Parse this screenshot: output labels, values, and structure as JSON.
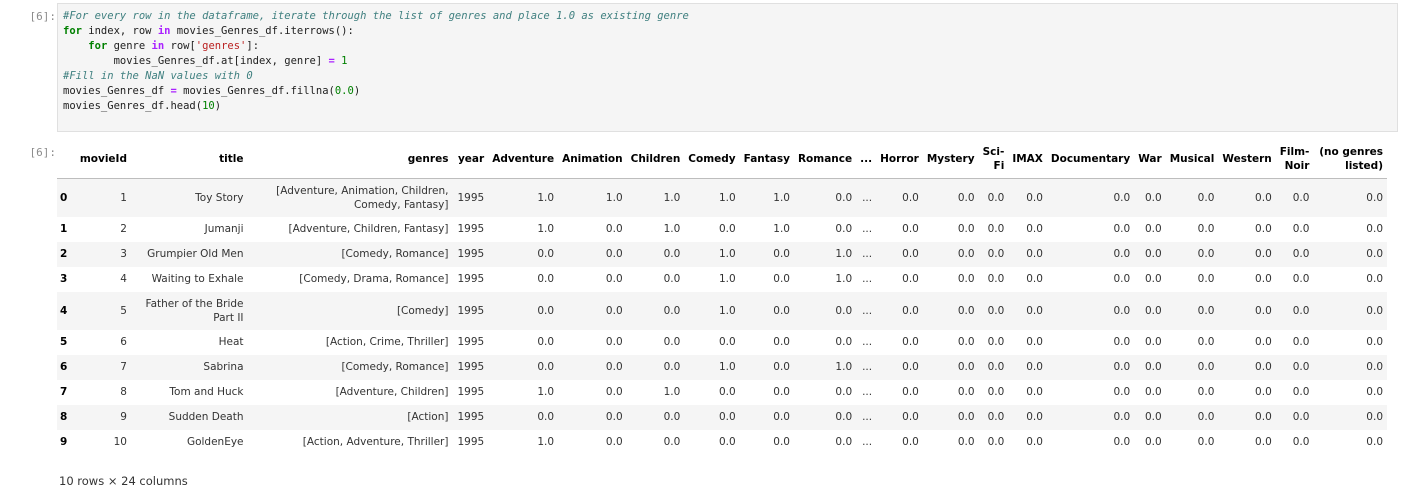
{
  "input_cell": {
    "prompt": "[6]:",
    "lines": [
      "#For every row in the dataframe, iterate through the list of genres and place 1.0 as existing genre",
      "for index, row in movies_Genres_df.iterrows():",
      "    for genre in row['genres']:",
      "        movies_Genres_df.at[index, genre] = 1",
      "",
      "#Fill in the NaN values with 0",
      "movies_Genres_df = movies_Genres_df.fillna(0.0)",
      "movies_Genres_df.head(10)"
    ]
  },
  "output_cell": {
    "prompt": "[6]:",
    "columns": [
      "",
      "movieId",
      "title",
      "genres",
      "year",
      "Adventure",
      "Animation",
      "Children",
      "Comedy",
      "Fantasy",
      "Romance",
      "...",
      "Horror",
      "Mystery",
      "Sci-Fi",
      "IMAX",
      "Documentary",
      "War",
      "Musical",
      "Western",
      "Film-Noir",
      "(no genres listed)"
    ],
    "rows": [
      [
        "0",
        "1",
        "Toy Story",
        "[Adventure, Animation, Children, Comedy, Fantasy]",
        "1995",
        "1.0",
        "1.0",
        "1.0",
        "1.0",
        "1.0",
        "0.0",
        "...",
        "0.0",
        "0.0",
        "0.0",
        "0.0",
        "0.0",
        "0.0",
        "0.0",
        "0.0",
        "0.0",
        "0.0"
      ],
      [
        "1",
        "2",
        "Jumanji",
        "[Adventure, Children, Fantasy]",
        "1995",
        "1.0",
        "0.0",
        "1.0",
        "0.0",
        "1.0",
        "0.0",
        "...",
        "0.0",
        "0.0",
        "0.0",
        "0.0",
        "0.0",
        "0.0",
        "0.0",
        "0.0",
        "0.0",
        "0.0"
      ],
      [
        "2",
        "3",
        "Grumpier Old Men",
        "[Comedy, Romance]",
        "1995",
        "0.0",
        "0.0",
        "0.0",
        "1.0",
        "0.0",
        "1.0",
        "...",
        "0.0",
        "0.0",
        "0.0",
        "0.0",
        "0.0",
        "0.0",
        "0.0",
        "0.0",
        "0.0",
        "0.0"
      ],
      [
        "3",
        "4",
        "Waiting to Exhale",
        "[Comedy, Drama, Romance]",
        "1995",
        "0.0",
        "0.0",
        "0.0",
        "1.0",
        "0.0",
        "1.0",
        "...",
        "0.0",
        "0.0",
        "0.0",
        "0.0",
        "0.0",
        "0.0",
        "0.0",
        "0.0",
        "0.0",
        "0.0"
      ],
      [
        "4",
        "5",
        "Father of the Bride Part II",
        "[Comedy]",
        "1995",
        "0.0",
        "0.0",
        "0.0",
        "1.0",
        "0.0",
        "0.0",
        "...",
        "0.0",
        "0.0",
        "0.0",
        "0.0",
        "0.0",
        "0.0",
        "0.0",
        "0.0",
        "0.0",
        "0.0"
      ],
      [
        "5",
        "6",
        "Heat",
        "[Action, Crime, Thriller]",
        "1995",
        "0.0",
        "0.0",
        "0.0",
        "0.0",
        "0.0",
        "0.0",
        "...",
        "0.0",
        "0.0",
        "0.0",
        "0.0",
        "0.0",
        "0.0",
        "0.0",
        "0.0",
        "0.0",
        "0.0"
      ],
      [
        "6",
        "7",
        "Sabrina",
        "[Comedy, Romance]",
        "1995",
        "0.0",
        "0.0",
        "0.0",
        "1.0",
        "0.0",
        "1.0",
        "...",
        "0.0",
        "0.0",
        "0.0",
        "0.0",
        "0.0",
        "0.0",
        "0.0",
        "0.0",
        "0.0",
        "0.0"
      ],
      [
        "7",
        "8",
        "Tom and Huck",
        "[Adventure, Children]",
        "1995",
        "1.0",
        "0.0",
        "1.0",
        "0.0",
        "0.0",
        "0.0",
        "...",
        "0.0",
        "0.0",
        "0.0",
        "0.0",
        "0.0",
        "0.0",
        "0.0",
        "0.0",
        "0.0",
        "0.0"
      ],
      [
        "8",
        "9",
        "Sudden Death",
        "[Action]",
        "1995",
        "0.0",
        "0.0",
        "0.0",
        "0.0",
        "0.0",
        "0.0",
        "...",
        "0.0",
        "0.0",
        "0.0",
        "0.0",
        "0.0",
        "0.0",
        "0.0",
        "0.0",
        "0.0",
        "0.0"
      ],
      [
        "9",
        "10",
        "GoldenEye",
        "[Action, Adventure, Thriller]",
        "1995",
        "1.0",
        "0.0",
        "0.0",
        "0.0",
        "0.0",
        "0.0",
        "...",
        "0.0",
        "0.0",
        "0.0",
        "0.0",
        "0.0",
        "0.0",
        "0.0",
        "0.0",
        "0.0",
        "0.0"
      ]
    ],
    "summary": "10 rows × 24 columns"
  }
}
